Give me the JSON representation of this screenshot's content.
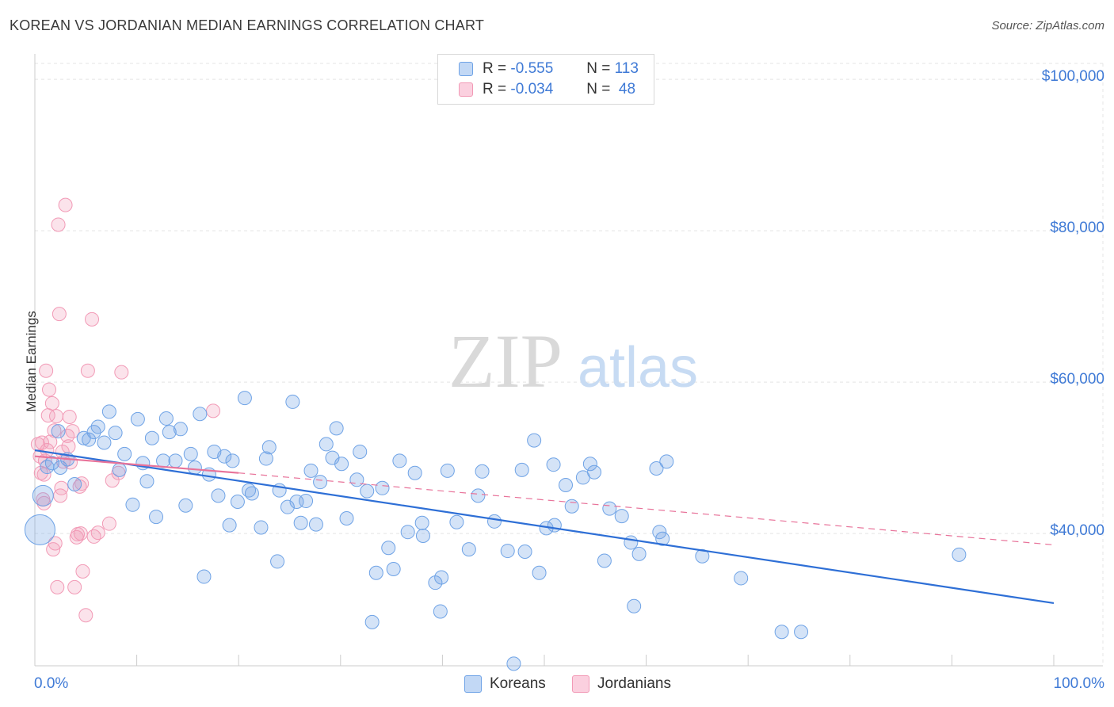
{
  "title": "KOREAN VS JORDANIAN MEDIAN EARNINGS CORRELATION CHART",
  "source": "Source: ZipAtlas.com",
  "watermark": {
    "zip": "ZIP",
    "atlas": "atlas"
  },
  "legend": {
    "rows": [
      {
        "r_label": "R =",
        "r_value": "-0.555",
        "n_label": "N =",
        "n_value": "113"
      },
      {
        "r_label": "R =",
        "r_value": "-0.034",
        "n_label": "N =",
        "n_value": "48"
      }
    ]
  },
  "colors": {
    "korean": "#6fa3e6",
    "korean_line": "#2e6fd6",
    "jordanian": "#f29ab6",
    "jordanian_line": "#e8739a",
    "axis_label": "#3f7ad6"
  },
  "chart_data": {
    "type": "scatter",
    "title": "KOREAN VS JORDANIAN MEDIAN EARNINGS CORRELATION CHART",
    "xlabel": "",
    "ylabel": "Median Earnings",
    "xlim": [
      0,
      100
    ],
    "ylim": [
      22000,
      102000
    ],
    "x_tick_labels": [
      "0.0%",
      "100.0%"
    ],
    "y_ticks": [
      40000,
      60000,
      80000,
      100000
    ],
    "y_tick_labels": [
      "$40,000",
      "$60,000",
      "$80,000",
      "$100,000"
    ],
    "grid": true,
    "legend_position": "top-center",
    "series": [
      {
        "name": "Koreans",
        "r": -0.555,
        "n": 113,
        "trend": {
          "x": [
            0,
            100
          ],
          "y": [
            51000,
            30800
          ]
        },
        "points": [
          [
            0.5,
            40500
          ],
          [
            0.8,
            45000
          ],
          [
            1.2,
            48800
          ],
          [
            1.7,
            49300
          ],
          [
            2.3,
            53500
          ],
          [
            2.5,
            48700
          ],
          [
            3.2,
            49800
          ],
          [
            3.9,
            46500
          ],
          [
            4.8,
            52600
          ],
          [
            5.3,
            52400
          ],
          [
            5.8,
            53400
          ],
          [
            6.2,
            54100
          ],
          [
            6.8,
            52000
          ],
          [
            7.3,
            56100
          ],
          [
            7.9,
            53300
          ],
          [
            8.3,
            48400
          ],
          [
            8.8,
            50500
          ],
          [
            9.6,
            43800
          ],
          [
            10.1,
            55100
          ],
          [
            10.6,
            49300
          ],
          [
            11.0,
            46900
          ],
          [
            11.5,
            52600
          ],
          [
            11.9,
            42200
          ],
          [
            12.6,
            49600
          ],
          [
            12.9,
            55200
          ],
          [
            13.2,
            53400
          ],
          [
            13.8,
            49600
          ],
          [
            14.3,
            53800
          ],
          [
            14.8,
            43700
          ],
          [
            15.3,
            50500
          ],
          [
            15.7,
            48700
          ],
          [
            16.2,
            55800
          ],
          [
            16.6,
            34300
          ],
          [
            17.1,
            47800
          ],
          [
            17.6,
            50800
          ],
          [
            18.0,
            45000
          ],
          [
            18.6,
            50200
          ],
          [
            19.1,
            41100
          ],
          [
            19.4,
            49600
          ],
          [
            19.9,
            44200
          ],
          [
            20.6,
            57900
          ],
          [
            21.0,
            45700
          ],
          [
            21.3,
            45300
          ],
          [
            22.2,
            40800
          ],
          [
            22.7,
            49900
          ],
          [
            23.0,
            51400
          ],
          [
            23.8,
            36300
          ],
          [
            24.0,
            45700
          ],
          [
            24.8,
            43500
          ],
          [
            25.3,
            57400
          ],
          [
            25.7,
            44200
          ],
          [
            26.1,
            41400
          ],
          [
            26.6,
            44300
          ],
          [
            27.1,
            48300
          ],
          [
            27.6,
            41200
          ],
          [
            28.0,
            46800
          ],
          [
            28.6,
            51800
          ],
          [
            29.2,
            50000
          ],
          [
            29.6,
            53900
          ],
          [
            30.1,
            49200
          ],
          [
            30.6,
            42000
          ],
          [
            31.6,
            47100
          ],
          [
            31.9,
            50800
          ],
          [
            32.6,
            45600
          ],
          [
            33.1,
            28300
          ],
          [
            33.5,
            34800
          ],
          [
            34.1,
            46000
          ],
          [
            34.7,
            38100
          ],
          [
            35.2,
            35300
          ],
          [
            35.8,
            49600
          ],
          [
            36.6,
            40200
          ],
          [
            37.3,
            48000
          ],
          [
            38.0,
            41400
          ],
          [
            38.1,
            39700
          ],
          [
            39.3,
            33500
          ],
          [
            39.8,
            29700
          ],
          [
            39.9,
            34200
          ],
          [
            40.5,
            48300
          ],
          [
            41.4,
            41500
          ],
          [
            42.6,
            37900
          ],
          [
            43.5,
            45000
          ],
          [
            43.9,
            48200
          ],
          [
            45.1,
            41600
          ],
          [
            46.4,
            37700
          ],
          [
            47.0,
            22800
          ],
          [
            47.8,
            48400
          ],
          [
            48.1,
            37600
          ],
          [
            49.0,
            52300
          ],
          [
            49.5,
            34800
          ],
          [
            50.2,
            40700
          ],
          [
            50.9,
            49100
          ],
          [
            51.0,
            41100
          ],
          [
            52.1,
            46400
          ],
          [
            52.7,
            43600
          ],
          [
            53.8,
            47400
          ],
          [
            54.5,
            49200
          ],
          [
            54.9,
            48100
          ],
          [
            55.9,
            36400
          ],
          [
            56.4,
            43300
          ],
          [
            57.6,
            42300
          ],
          [
            58.5,
            38800
          ],
          [
            58.8,
            30400
          ],
          [
            59.3,
            37300
          ],
          [
            61.0,
            48600
          ],
          [
            61.3,
            40200
          ],
          [
            61.6,
            39300
          ],
          [
            62.0,
            49500
          ],
          [
            65.5,
            37000
          ],
          [
            69.3,
            34100
          ],
          [
            73.3,
            27000
          ],
          [
            75.2,
            27000
          ],
          [
            90.7,
            37200
          ]
        ]
      },
      {
        "name": "Jordanians",
        "r": -0.034,
        "n": 48,
        "trend_solid": {
          "x": [
            0,
            20
          ],
          "y": [
            50200,
            48000
          ]
        },
        "trend_dashed": {
          "x": [
            20,
            100
          ],
          "y": [
            48000,
            38500
          ]
        },
        "points": [
          [
            0.3,
            51800
          ],
          [
            0.5,
            50200
          ],
          [
            0.6,
            48000
          ],
          [
            0.7,
            52000
          ],
          [
            0.8,
            44500
          ],
          [
            0.9,
            47800
          ],
          [
            1.0,
            49600
          ],
          [
            1.2,
            51000
          ],
          [
            1.3,
            55600
          ],
          [
            1.5,
            52100
          ],
          [
            1.7,
            57200
          ],
          [
            1.8,
            37900
          ],
          [
            1.9,
            53600
          ],
          [
            2.0,
            38700
          ],
          [
            2.1,
            55500
          ],
          [
            2.2,
            32900
          ],
          [
            2.3,
            80800
          ],
          [
            2.4,
            69000
          ],
          [
            2.5,
            45000
          ],
          [
            2.6,
            46000
          ],
          [
            2.8,
            49500
          ],
          [
            3.0,
            83400
          ],
          [
            3.2,
            52900
          ],
          [
            3.4,
            55400
          ],
          [
            3.5,
            49400
          ],
          [
            3.7,
            53500
          ],
          [
            3.9,
            32900
          ],
          [
            4.1,
            39500
          ],
          [
            4.2,
            39900
          ],
          [
            4.4,
            46200
          ],
          [
            4.5,
            40000
          ],
          [
            4.6,
            46600
          ],
          [
            4.7,
            35000
          ],
          [
            5.0,
            29200
          ],
          [
            5.2,
            61500
          ],
          [
            5.6,
            68300
          ],
          [
            5.8,
            39600
          ],
          [
            6.2,
            40100
          ],
          [
            7.3,
            41300
          ],
          [
            7.6,
            47000
          ],
          [
            8.2,
            48000
          ],
          [
            8.5,
            61300
          ],
          [
            17.5,
            56200
          ],
          [
            1.1,
            61500
          ],
          [
            0.9,
            44000
          ],
          [
            2.7,
            50800
          ],
          [
            1.4,
            59000
          ],
          [
            3.3,
            51500
          ]
        ]
      }
    ]
  },
  "bottom_legend": {
    "koreans": "Koreans",
    "jordanians": "Jordanians"
  }
}
